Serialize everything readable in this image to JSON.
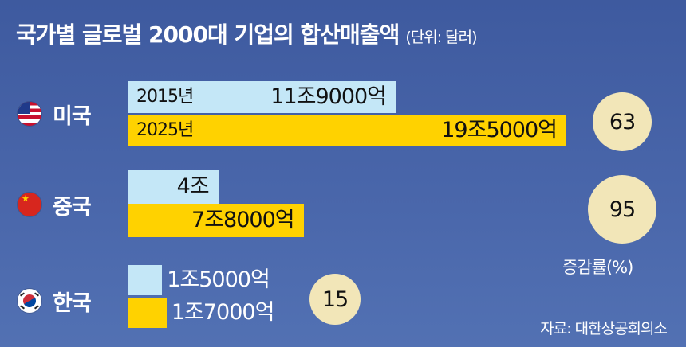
{
  "colors": {
    "background": "#4a67ab",
    "bar_2015": "#c4e7f7",
    "bar_2025": "#ffd200",
    "badge": "#f2e6b8"
  },
  "chart_data": {
    "type": "bar",
    "orientation": "horizontal",
    "title": "국가별 글로벌 2000대 기업의 합산매출액",
    "unit": "(단위: 달러)",
    "categories": [
      "미국",
      "중국",
      "한국"
    ],
    "series": [
      {
        "name": "2015년",
        "values": [
          119000,
          40000,
          15000
        ],
        "labels": [
          "11조9000억",
          "4조",
          "1조5000억"
        ]
      },
      {
        "name": "2025년",
        "values": [
          195000,
          78000,
          17000
        ],
        "labels": [
          "19조5000억",
          "7조8000억",
          "1조7000억"
        ]
      }
    ],
    "value_unit": "억 달러",
    "growth_rates": [
      63,
      95,
      15
    ],
    "growth_label": "증감률(%)",
    "source": "자료: 대한상공회의소",
    "grid": false,
    "legend": "inline"
  },
  "icons": {
    "us": "us-flag-icon",
    "cn": "china-flag-icon",
    "kr": "korea-flag-icon"
  }
}
